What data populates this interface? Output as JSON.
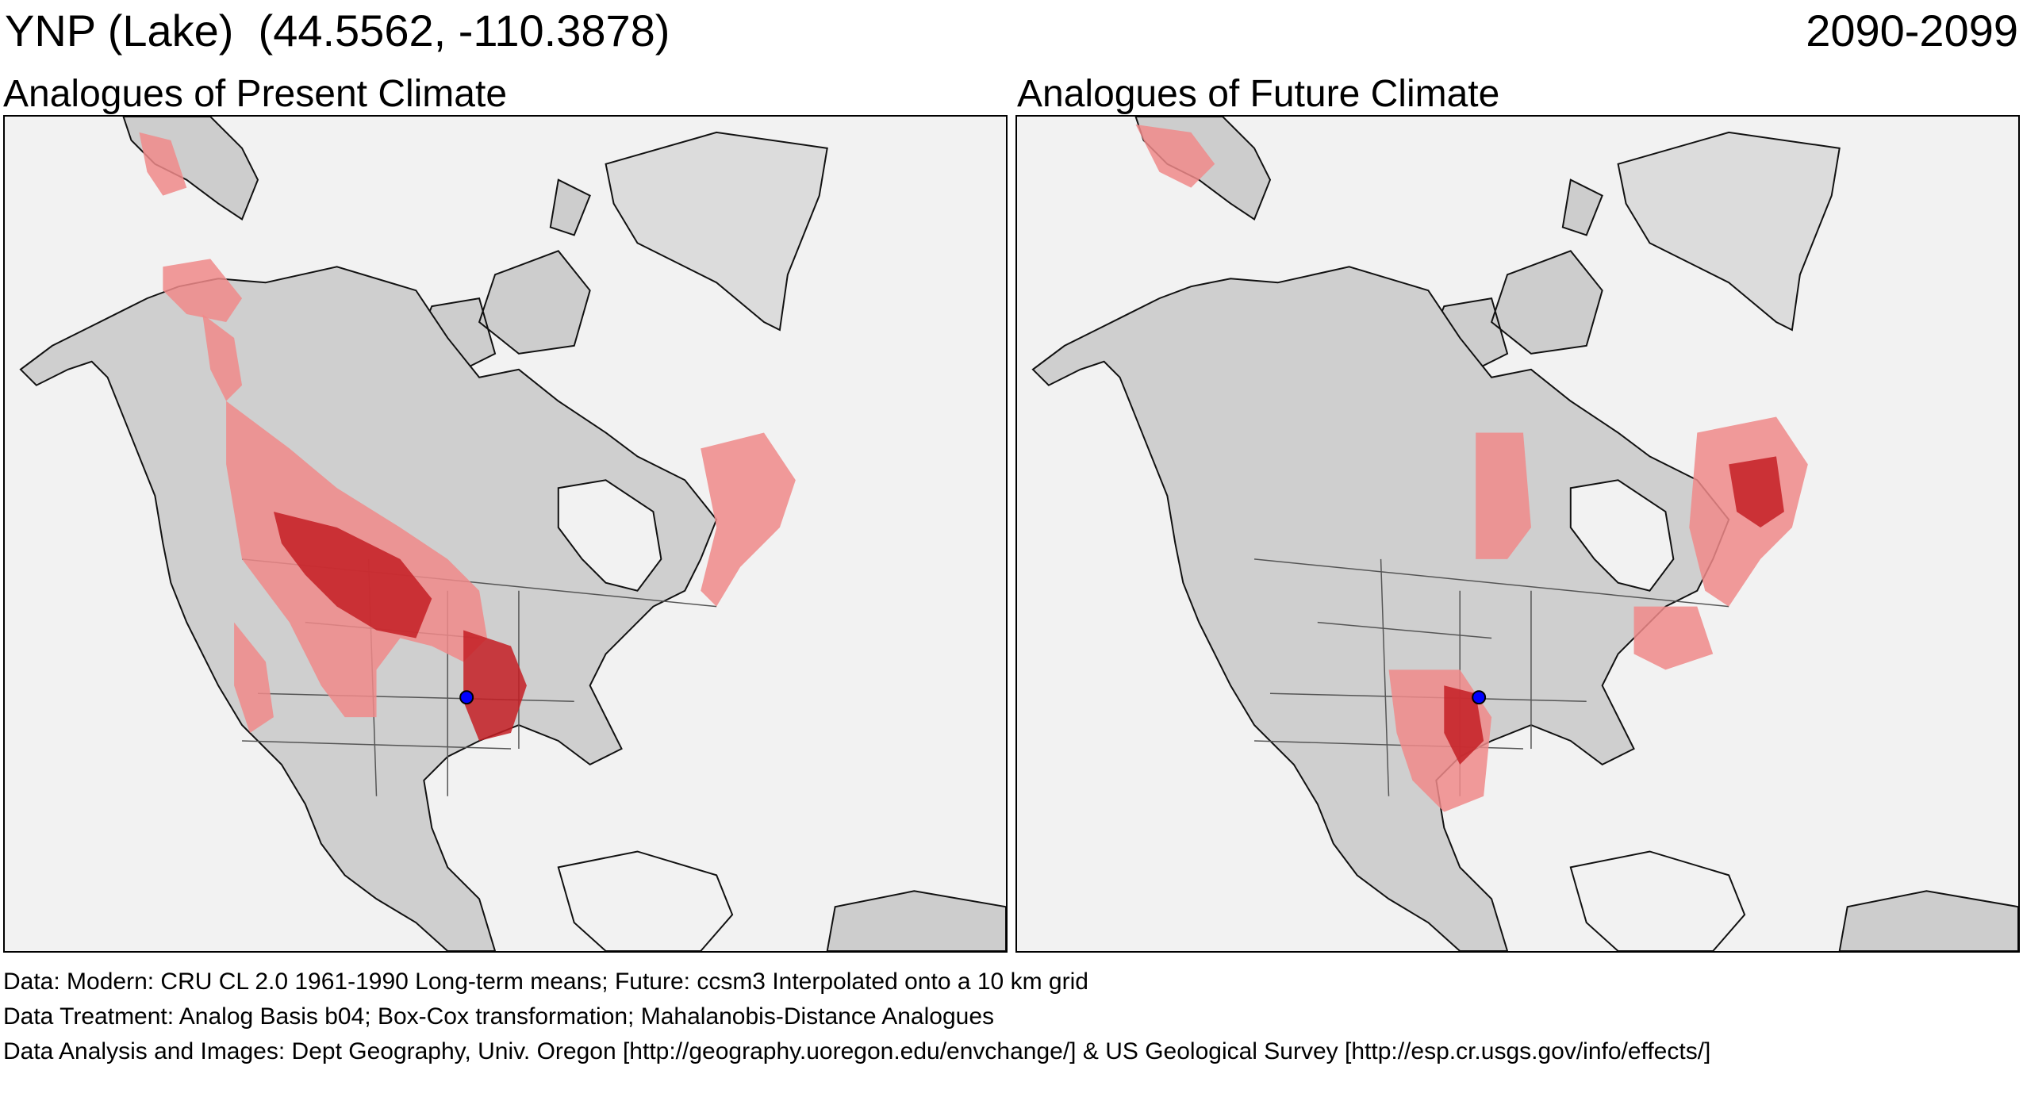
{
  "header": {
    "site": "YNP (Lake)  (44.5562, -110.3878)",
    "period": "2090-2099"
  },
  "panels": [
    {
      "title": "Analogues of Present Climate"
    },
    {
      "title": "Analogues of Future Climate"
    }
  ],
  "footer": {
    "data": "Data:  Modern: CRU CL 2.0 1961-1990 Long-term means; Future: ccsm3 Interpolated onto a 10 km grid",
    "treatment": "Data Treatment:  Analog Basis b04; Box-Cox transformation; Mahalanobis-Distance Analogues",
    "analysis": "Data Analysis and Images:  Dept Geography, Univ. Oregon [http://geography.uoregon.edu/envchange/] & US Geological Survey [http://esp.cr.usgs.gov/info/effects/]"
  },
  "colors": {
    "ocean": "#f2f2f2",
    "land": "#cfcfcf",
    "analog_light": "#f08a8a",
    "analog_dark": "#c41f24",
    "site_marker": "#0000ff"
  }
}
